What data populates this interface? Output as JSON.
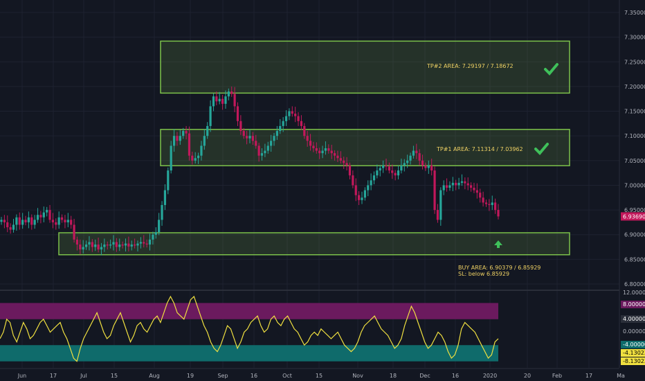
{
  "chart_data": [
    {
      "type": "candlestick",
      "title": "",
      "ylim": [
        6.8,
        7.36
      ],
      "y_ticks": [
        "6.80000",
        "6.85000",
        "6.90000",
        "6.95000",
        "7.00000",
        "7.05000",
        "7.10000",
        "7.15000",
        "7.20000",
        "7.25000",
        "7.30000",
        "7.35000"
      ],
      "x_labels": [
        "Jun",
        "17",
        "Jul",
        "15",
        "Aug",
        "19",
        "Sep",
        "16",
        "Oct",
        "15",
        "Nov",
        "18",
        "Dec",
        "16",
        "2020",
        "20",
        "Feb",
        "17",
        "Ma"
      ],
      "last_price": "6.93690",
      "zones": [
        {
          "name": "tp2",
          "top": 7.29197,
          "bottom": 7.18672,
          "label": "TP#2 AREA: 7.29197 / 7.18672",
          "status": "check"
        },
        {
          "name": "tp1",
          "top": 7.11314,
          "bottom": 7.03962,
          "label": "TP#1 AREA: 7.11314 / 7.03962",
          "status": "check"
        },
        {
          "name": "buy",
          "top": 6.90379,
          "bottom": 6.85929,
          "label_lines": [
            "BUY AREA: 6.90379 / 6.85929",
            "SL: below 6.85929"
          ],
          "status": "arrow-up"
        }
      ],
      "closes": [
        6.93,
        6.925,
        6.915,
        6.91,
        6.92,
        6.935,
        6.92,
        6.93,
        6.925,
        6.935,
        6.92,
        6.93,
        6.94,
        6.935,
        6.945,
        6.95,
        6.93,
        6.925,
        6.92,
        6.935,
        6.93,
        6.925,
        6.93,
        6.92,
        6.89,
        6.88,
        6.87,
        6.875,
        6.88,
        6.885,
        6.875,
        6.88,
        6.87,
        6.875,
        6.88,
        6.878,
        6.88,
        6.885,
        6.875,
        6.88,
        6.878,
        6.882,
        6.876,
        6.88,
        6.878,
        6.882,
        6.885,
        6.882,
        6.88,
        6.89,
        6.9,
        6.905,
        6.93,
        6.96,
        6.99,
        7.03,
        7.08,
        7.1,
        7.09,
        7.1,
        7.11,
        7.105,
        7.06,
        7.05,
        7.055,
        7.06,
        7.08,
        7.1,
        7.12,
        7.16,
        7.18,
        7.17,
        7.175,
        7.165,
        7.18,
        7.19,
        7.185,
        7.16,
        7.13,
        7.11,
        7.1,
        7.095,
        7.1,
        7.09,
        7.08,
        7.06,
        7.065,
        7.07,
        7.08,
        7.09,
        7.1,
        7.11,
        7.12,
        7.13,
        7.14,
        7.15,
        7.145,
        7.14,
        7.13,
        7.12,
        7.1,
        7.09,
        7.08,
        7.075,
        7.07,
        7.065,
        7.07,
        7.075,
        7.07,
        7.065,
        7.06,
        7.055,
        7.05,
        7.045,
        7.04,
        7.02,
        7.0,
        6.98,
        6.97,
        6.975,
        6.99,
        7.0,
        7.01,
        7.02,
        7.03,
        7.035,
        7.04,
        7.038,
        7.03,
        7.025,
        7.02,
        7.03,
        7.04,
        7.045,
        7.05,
        7.06,
        7.07,
        7.065,
        7.05,
        7.04,
        7.035,
        7.04,
        7.03,
        6.95,
        6.93,
        6.99,
        7.0,
        6.995,
        7.0,
        7.005,
        7.0,
        7.005,
        7.008,
        7.004,
        7.0,
        6.995,
        6.99,
        6.985,
        6.975,
        6.965,
        6.962,
        6.96,
        6.965,
        6.95,
        6.9369
      ],
      "sub_chart": {
        "y_ticks": [
          "12.00000",
          "8.00000",
          "4.00000",
          "0.00000",
          "-4.00000",
          "-4.13023",
          "-8.13023"
        ],
        "ylim": [
          -11,
          12.5
        ],
        "upper_band": [
          4,
          9
        ],
        "lower_band": [
          -4,
          -9
        ],
        "values": [
          -2,
          0,
          4,
          3,
          -1,
          -3,
          0,
          3,
          1,
          -2,
          -1,
          1,
          3,
          4,
          2,
          0,
          1,
          2,
          3,
          0,
          -2,
          -5,
          -8,
          -9,
          -5,
          -2,
          0,
          2,
          4,
          6,
          3,
          0,
          -2,
          -1,
          2,
          4,
          6,
          3,
          0,
          -3,
          -1,
          2,
          3,
          1,
          0,
          2,
          4,
          5,
          3,
          6,
          9,
          11,
          9,
          6,
          5,
          4,
          7,
          10,
          11,
          8,
          5,
          2,
          0,
          -3,
          -5,
          -6,
          -4,
          -1,
          2,
          1,
          -2,
          -5,
          -3,
          0,
          1,
          3,
          4,
          5,
          2,
          0,
          1,
          4,
          5,
          3,
          2,
          4,
          5,
          3,
          1,
          0,
          -2,
          -4,
          -3,
          -1,
          0,
          -1,
          1,
          0,
          -1,
          -2,
          -1,
          0,
          -2,
          -4,
          -5,
          -6,
          -5,
          -3,
          0,
          2,
          3,
          4,
          5,
          3,
          1,
          0,
          -1,
          -3,
          -5,
          -4,
          -2,
          2,
          5,
          8,
          6,
          3,
          0,
          -3,
          -5,
          -4,
          -2,
          0,
          -1,
          -3,
          -6,
          -8,
          -7,
          -4,
          1,
          3,
          2,
          1,
          0,
          -2,
          -4,
          -6,
          -8,
          -7,
          -3,
          -2
        ]
      }
    }
  ]
}
